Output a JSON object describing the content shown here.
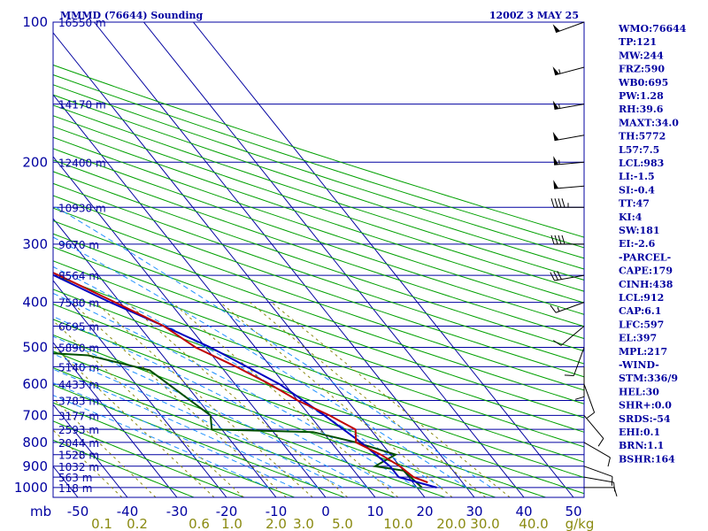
{
  "header": {
    "title": "MMMD (76644) Sounding",
    "time": "1200Z  3 MAY 25"
  },
  "indices": [
    "WMO:76644",
    "TP:121",
    "MW:244",
    "FRZ:590",
    "WB0:695",
    "PW:1.28",
    "RH:39.6",
    "MAXT:34.0",
    "TH:5772",
    "L57:7.5",
    "LCL:983",
    "LI:-1.5",
    "SI:-0.4",
    "TT:47",
    "KI:4",
    "SW:181",
    "EI:-2.6",
    "-PARCEL-",
    "CAPE:179",
    "CINH:438",
    "LCL:912",
    "CAP:6.1",
    "LFC:597",
    "EL:397",
    "MPL:217",
    "-WIND-",
    "STM:336/9",
    "HEL:30",
    "SHR+:0.0",
    "SRDS:-54",
    "EHI:0.1",
    "BRN:1.1",
    "BSHR:164"
  ],
  "colors": {
    "frame": "#0000a0",
    "isobar": "#0000a0",
    "isotherm": "#0000a0",
    "dry_adiabat": "#00a000",
    "moist_adiabat": "#1e90ff",
    "mixing_ratio": "#8a8a10",
    "temperature": "#c00000",
    "dewpoint": "#005000",
    "parcel": "#0000c0",
    "wind_barb": "#000000"
  },
  "chart_data": {
    "type": "line",
    "subtype": "skew-T log-P",
    "pressure_levels": [
      100,
      200,
      300,
      400,
      500,
      600,
      700,
      800,
      900,
      1000
    ],
    "pressure_unit_label": "mb",
    "temperature_ticks": [
      -50,
      -40,
      -30,
      -20,
      -10,
      0,
      10,
      20,
      30,
      40,
      50
    ],
    "mixing_ratio_labels": [
      "0.1",
      "0.2",
      "0.6",
      "1.0",
      "2.0",
      "3.0",
      "5.0",
      "10.0",
      "20.0",
      "30.0",
      "40.0",
      "g/kg"
    ],
    "height_labels": [
      {
        "p": 100,
        "text": "16550 m"
      },
      {
        "p": 150,
        "text": "14170 m"
      },
      {
        "p": 200,
        "text": "12400 m"
      },
      {
        "p": 250,
        "text": "10930 m"
      },
      {
        "p": 300,
        "text": "9670 m"
      },
      {
        "p": 350,
        "text": "8564 m"
      },
      {
        "p": 400,
        "text": "7580 m"
      },
      {
        "p": 450,
        "text": "6695 m"
      },
      {
        "p": 500,
        "text": "5890 m"
      },
      {
        "p": 550,
        "text": "5140 m"
      },
      {
        "p": 600,
        "text": "4433 m"
      },
      {
        "p": 650,
        "text": "3783 m"
      },
      {
        "p": 700,
        "text": "3177 m"
      },
      {
        "p": 750,
        "text": "2593 m"
      },
      {
        "p": 800,
        "text": "2044 m"
      },
      {
        "p": 850,
        "text": "1528 m"
      },
      {
        "p": 900,
        "text": "1032 m"
      },
      {
        "p": 950,
        "text": "563 m"
      },
      {
        "p": 1000,
        "text": "118 m"
      }
    ],
    "temperature_profile": [
      [
        100,
        -66
      ],
      [
        110,
        -68
      ],
      [
        125,
        -64
      ],
      [
        150,
        -58
      ],
      [
        175,
        -51
      ],
      [
        200,
        -45
      ],
      [
        250,
        -36
      ],
      [
        300,
        -27
      ],
      [
        350,
        -18
      ],
      [
        400,
        -11
      ],
      [
        450,
        -5
      ],
      [
        500,
        -2
      ],
      [
        550,
        3
      ],
      [
        600,
        7
      ],
      [
        650,
        10
      ],
      [
        700,
        14
      ],
      [
        750,
        17
      ],
      [
        800,
        15
      ],
      [
        850,
        18
      ],
      [
        900,
        20
      ],
      [
        950,
        21
      ],
      [
        975,
        23
      ]
    ],
    "dewpoint_profile": [
      [
        100,
        -84
      ],
      [
        150,
        -84
      ],
      [
        175,
        -82
      ],
      [
        200,
        -82
      ],
      [
        250,
        -76
      ],
      [
        300,
        -67
      ],
      [
        350,
        -57
      ],
      [
        395,
        -52
      ],
      [
        400,
        -60
      ],
      [
        430,
        -35
      ],
      [
        480,
        -48
      ],
      [
        500,
        -52
      ],
      [
        520,
        -25
      ],
      [
        560,
        -15
      ],
      [
        700,
        -10
      ],
      [
        750,
        -12
      ],
      [
        760,
        8
      ],
      [
        800,
        15
      ],
      [
        850,
        21
      ],
      [
        900,
        15
      ],
      [
        920,
        20
      ],
      [
        1000,
        21
      ]
    ],
    "parcel_profile": [
      [
        120,
        -70
      ],
      [
        150,
        -65
      ],
      [
        200,
        -50
      ],
      [
        250,
        -38
      ],
      [
        300,
        -28
      ],
      [
        350,
        -19
      ],
      [
        400,
        -12
      ],
      [
        450,
        -5
      ],
      [
        500,
        1
      ],
      [
        600,
        9
      ],
      [
        700,
        13
      ],
      [
        800,
        16
      ],
      [
        900,
        18
      ],
      [
        950,
        18
      ],
      [
        1000,
        24
      ]
    ],
    "wind_barbs": [
      {
        "p": 100,
        "dir": 250,
        "spd": 50
      },
      {
        "p": 125,
        "dir": 255,
        "spd": 55
      },
      {
        "p": 150,
        "dir": 260,
        "spd": 55
      },
      {
        "p": 175,
        "dir": 260,
        "spd": 50
      },
      {
        "p": 200,
        "dir": 265,
        "spd": 55
      },
      {
        "p": 225,
        "dir": 265,
        "spd": 50
      },
      {
        "p": 250,
        "dir": 270,
        "spd": 45
      },
      {
        "p": 300,
        "dir": 270,
        "spd": 40
      },
      {
        "p": 350,
        "dir": 260,
        "spd": 30
      },
      {
        "p": 400,
        "dir": 250,
        "spd": 15
      },
      {
        "p": 450,
        "dir": 230,
        "spd": 10
      },
      {
        "p": 500,
        "dir": 200,
        "spd": 10
      },
      {
        "p": 550,
        "dir": 180,
        "spd": 10
      },
      {
        "p": 600,
        "dir": 160,
        "spd": 10
      },
      {
        "p": 700,
        "dir": 140,
        "spd": 10
      },
      {
        "p": 800,
        "dir": 120,
        "spd": 10
      },
      {
        "p": 900,
        "dir": 110,
        "spd": 10
      },
      {
        "p": 950,
        "dir": 100,
        "spd": 10
      },
      {
        "p": 1000,
        "dir": 90,
        "spd": 10
      }
    ]
  }
}
